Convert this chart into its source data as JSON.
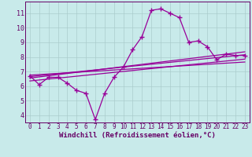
{
  "xlabel": "Windchill (Refroidissement éolien,°C)",
  "bg_color": "#c8eaea",
  "line_color": "#990099",
  "grid_color": "#aacccc",
  "axis_color": "#660066",
  "xlim": [
    -0.5,
    23.5
  ],
  "ylim": [
    3.5,
    11.8
  ],
  "xticks": [
    0,
    1,
    2,
    3,
    4,
    5,
    6,
    7,
    8,
    9,
    10,
    11,
    12,
    13,
    14,
    15,
    16,
    17,
    18,
    19,
    20,
    21,
    22,
    23
  ],
  "yticks": [
    4,
    5,
    6,
    7,
    8,
    9,
    10,
    11
  ],
  "main_line": [
    6.7,
    6.1,
    6.6,
    6.6,
    6.2,
    5.7,
    5.5,
    3.7,
    5.5,
    6.6,
    7.3,
    8.5,
    9.4,
    11.2,
    11.3,
    11.0,
    10.7,
    9.0,
    9.1,
    8.7,
    7.8,
    8.2,
    8.1,
    8.1
  ],
  "linear_lines": [
    [
      6.65,
      8.15
    ],
    [
      6.55,
      8.35
    ],
    [
      6.35,
      7.85
    ],
    [
      6.75,
      7.65
    ]
  ],
  "marker": "+",
  "markersize": 4,
  "linewidth": 0.9,
  "tick_fontsize": 5.5,
  "xlabel_fontsize": 6.5
}
